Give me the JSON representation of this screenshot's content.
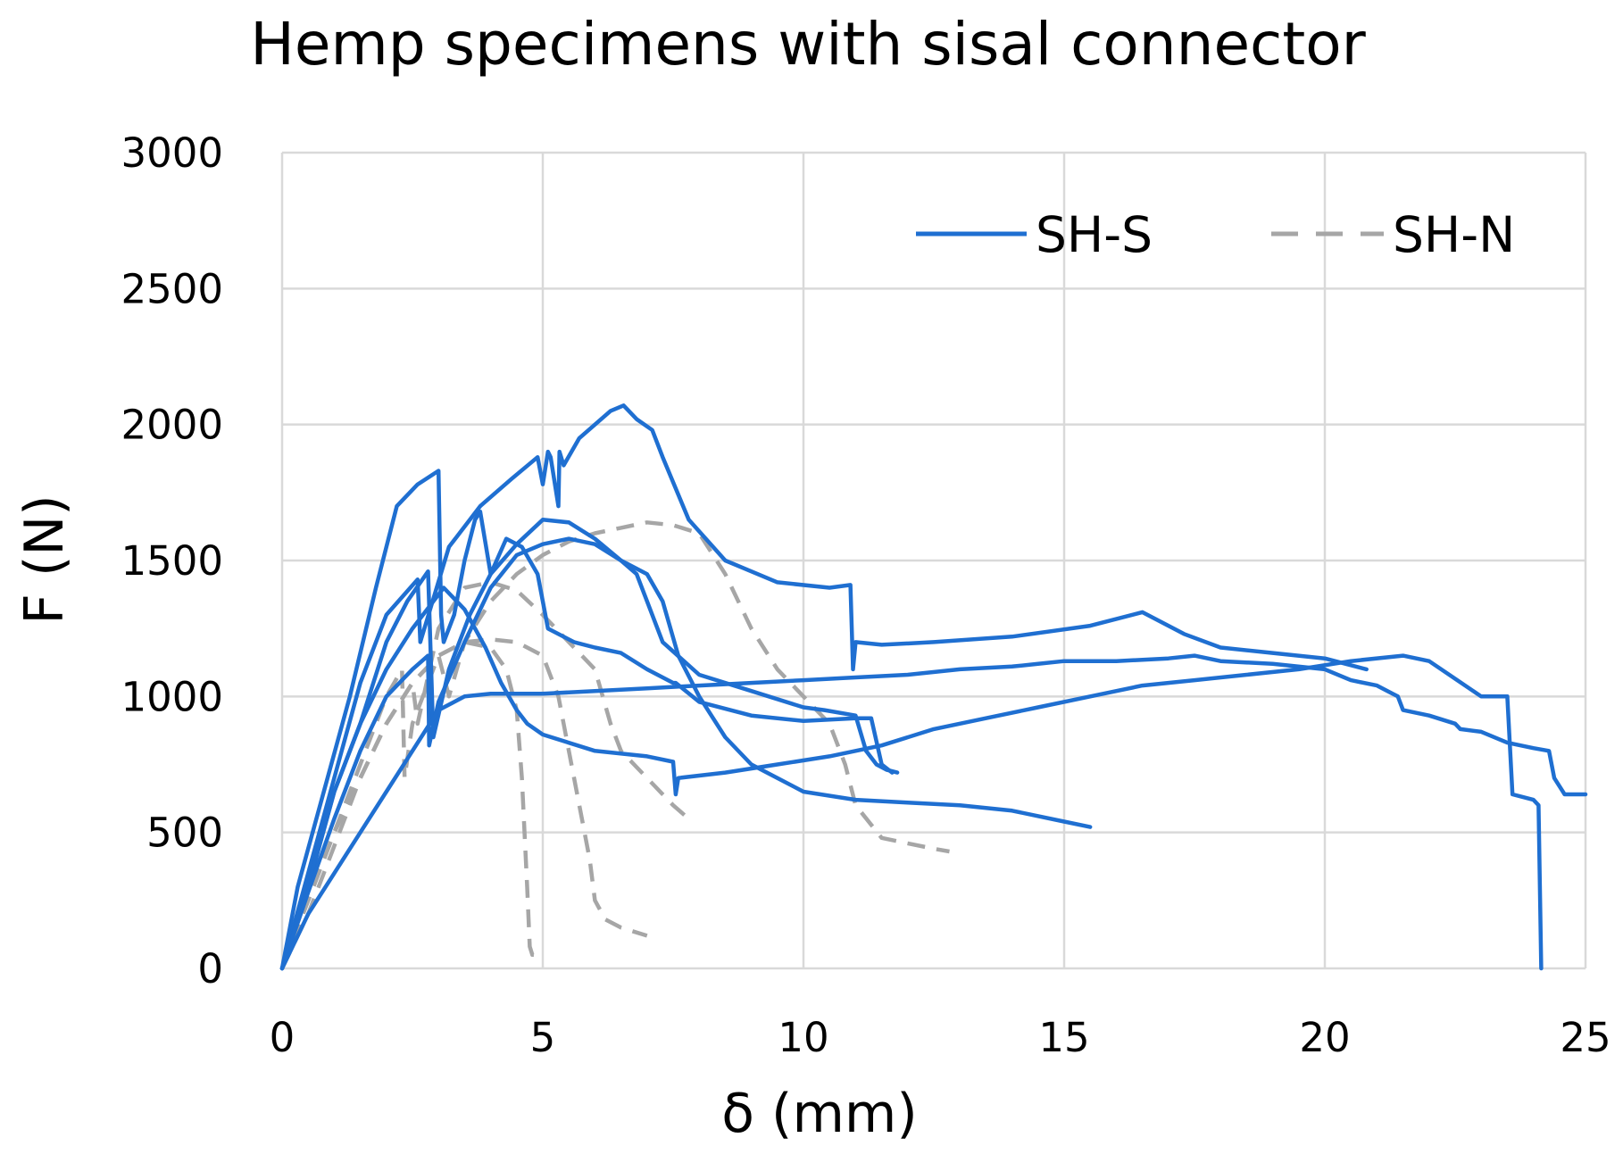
{
  "chart_data": {
    "type": "line",
    "title": "Hemp specimens with sisal connector",
    "xlabel": "δ (mm)",
    "ylabel": "F (N)",
    "xlim": [
      0,
      25
    ],
    "ylim": [
      0,
      3000
    ],
    "x_ticks": [
      "0",
      "5",
      "10",
      "15",
      "20",
      "25"
    ],
    "y_ticks": [
      "0",
      "500",
      "1000",
      "1500",
      "2000",
      "2500",
      "3000"
    ],
    "grid": true,
    "legend_position": "top-right",
    "legend": [
      {
        "label": "SH-S",
        "color": "#1f6fd1",
        "style": "solid"
      },
      {
        "label": "SH-N",
        "color": "#a6a6a6",
        "style": "dashed"
      }
    ],
    "series": [
      {
        "group": "SH-S",
        "color": "#1f6fd1",
        "style": "solid",
        "x": [
          0,
          0.3,
          0.8,
          1.3,
          1.8,
          2.2,
          2.6,
          3.0,
          3.05,
          3.1,
          3.3,
          3.5,
          3.7,
          3.8,
          4.0,
          4.3,
          4.6,
          4.9,
          5.1,
          5.6,
          6.0,
          6.5,
          7.0,
          7.5,
          7.55,
          8.0,
          9.0,
          10.0,
          11.0,
          11.3,
          11.5,
          11.7
        ],
        "y": [
          0,
          300,
          650,
          1000,
          1400,
          1700,
          1780,
          1830,
          1300,
          1200,
          1300,
          1500,
          1650,
          1680,
          1450,
          1580,
          1550,
          1450,
          1250,
          1200,
          1180,
          1160,
          1100,
          1050,
          1050,
          980,
          930,
          910,
          920,
          920,
          750,
          720
        ]
      },
      {
        "group": "SH-S",
        "color": "#1f6fd1",
        "style": "solid",
        "x": [
          0,
          0.5,
          1.0,
          1.5,
          2.0,
          2.6,
          2.65,
          3.2,
          3.8,
          4.4,
          4.9,
          5.0,
          5.1,
          5.15,
          5.3,
          5.32,
          5.4,
          5.7,
          6.0,
          6.3,
          6.55,
          6.8,
          7.1,
          7.3,
          7.8,
          8.5,
          9.5,
          10.5,
          10.9,
          10.95,
          11.0,
          11.5,
          12.5,
          14,
          15.5,
          16.5,
          17.3,
          18,
          19,
          20,
          20.8
        ],
        "y": [
          0,
          350,
          700,
          1050,
          1300,
          1430,
          1200,
          1550,
          1700,
          1800,
          1880,
          1780,
          1900,
          1880,
          1700,
          1900,
          1850,
          1950,
          2000,
          2050,
          2070,
          2020,
          1980,
          1880,
          1650,
          1500,
          1420,
          1400,
          1410,
          1100,
          1200,
          1190,
          1200,
          1220,
          1260,
          1310,
          1230,
          1180,
          1160,
          1140,
          1100
        ]
      },
      {
        "group": "SH-S",
        "color": "#1f6fd1",
        "style": "solid",
        "x": [
          0,
          0.5,
          1.0,
          1.5,
          2.0,
          2.4,
          2.8,
          2.9,
          3.2,
          3.6,
          4.0,
          4.5,
          5.0,
          5.5,
          6.0,
          6.5,
          6.8,
          7.0,
          7.3,
          8.0,
          9.0,
          10.0,
          10.4,
          11.0,
          11.2,
          11.4,
          11.6,
          11.8
        ],
        "y": [
          0,
          300,
          650,
          900,
          1200,
          1350,
          1460,
          850,
          1100,
          1300,
          1450,
          1560,
          1650,
          1640,
          1580,
          1500,
          1450,
          1350,
          1200,
          1080,
          1020,
          960,
          950,
          930,
          800,
          750,
          730,
          720
        ]
      },
      {
        "group": "SH-S",
        "color": "#1f6fd1",
        "style": "solid",
        "x": [
          0,
          0.5,
          1.0,
          1.5,
          2.0,
          2.5,
          2.9,
          3.1,
          3.5,
          3.9,
          4.2,
          4.5,
          4.7,
          5.0,
          6.0,
          7.0,
          7.5,
          7.55,
          7.6,
          8.5,
          9.5,
          10.5,
          11.5,
          12.5,
          13.5,
          14.5,
          15.5,
          16.5,
          17.5,
          18.5,
          19.5,
          20.5,
          21.5,
          22.0,
          23.0,
          23.5,
          23.6,
          24.0,
          24.1,
          24.15
        ],
        "y": [
          0,
          300,
          650,
          900,
          1100,
          1250,
          1350,
          1400,
          1320,
          1180,
          1050,
          950,
          900,
          860,
          800,
          780,
          760,
          640,
          700,
          720,
          750,
          780,
          820,
          880,
          920,
          960,
          1000,
          1040,
          1060,
          1080,
          1100,
          1130,
          1150,
          1130,
          1000,
          1000,
          640,
          620,
          600,
          0
        ]
      },
      {
        "group": "SH-S",
        "color": "#1f6fd1",
        "style": "solid",
        "x": [
          0,
          0.5,
          1.0,
          1.5,
          2.0,
          2.5,
          2.8,
          2.82,
          3.0,
          3.5,
          4.0,
          4.5,
          5.0,
          5.5,
          6.0,
          6.5,
          7.0,
          7.3,
          7.6,
          8.0,
          8.5,
          9.0,
          9.5,
          10.0,
          11.0,
          12.0,
          13.0,
          14.0,
          15.0,
          15.5
        ],
        "y": [
          0,
          280,
          550,
          800,
          1000,
          1100,
          1150,
          820,
          980,
          1200,
          1400,
          1520,
          1560,
          1580,
          1560,
          1500,
          1450,
          1350,
          1150,
          1000,
          850,
          750,
          700,
          650,
          620,
          610,
          600,
          580,
          540,
          520
        ]
      },
      {
        "group": "SH-S",
        "color": "#1f6fd1",
        "style": "solid",
        "x": [
          0,
          0.5,
          1.0,
          1.5,
          2.0,
          2.5,
          3.0,
          3.5,
          4.0,
          5.0,
          6.0,
          7.0,
          8.0,
          9.0,
          10.0,
          11.0,
          12.0,
          13.0,
          14.0,
          14.5,
          15.0,
          16.0,
          17.0,
          17.5,
          18.0,
          19.0,
          20.0,
          20.5,
          21.0,
          21.3,
          21.4,
          21.5,
          22.0,
          22.5,
          22.6,
          23.0,
          23.5,
          24.0,
          24.3,
          24.4,
          24.6,
          25.0
        ],
        "y": [
          0,
          200,
          350,
          500,
          650,
          800,
          950,
          1000,
          1010,
          1010,
          1020,
          1030,
          1040,
          1050,
          1060,
          1070,
          1080,
          1100,
          1110,
          1120,
          1130,
          1130,
          1140,
          1150,
          1130,
          1120,
          1100,
          1060,
          1040,
          1010,
          1000,
          950,
          930,
          900,
          880,
          870,
          830,
          810,
          800,
          700,
          640,
          640
        ]
      },
      {
        "group": "SH-N",
        "color": "#a6a6a6",
        "style": "dashed",
        "x": [
          0,
          0.5,
          1.0,
          1.5,
          2.0,
          2.3,
          2.35,
          2.5,
          3.0,
          3.5,
          4.0,
          4.3,
          4.5,
          4.6,
          4.7,
          4.75,
          4.8,
          4.9
        ],
        "y": [
          0,
          250,
          500,
          750,
          1000,
          1100,
          700,
          900,
          1150,
          1200,
          1180,
          1100,
          950,
          700,
          300,
          80,
          50,
          50
        ]
      },
      {
        "group": "SH-N",
        "color": "#a6a6a6",
        "style": "dashed",
        "x": [
          0,
          0.5,
          1.0,
          1.5,
          2.0,
          2.5,
          3.0,
          3.5,
          4.0,
          4.5,
          5.0,
          5.3,
          5.5,
          5.7,
          5.9,
          6.0,
          6.2,
          6.5,
          7.0
        ],
        "y": [
          0,
          250,
          500,
          700,
          900,
          1050,
          1150,
          1200,
          1210,
          1200,
          1150,
          1000,
          800,
          600,
          400,
          250,
          180,
          150,
          120
        ]
      },
      {
        "group": "SH-N",
        "color": "#a6a6a6",
        "style": "dashed",
        "x": [
          0,
          0.5,
          1.0,
          1.5,
          2.0,
          2.5,
          2.6,
          3.0,
          3.5,
          4.0,
          4.5,
          5.0,
          5.5,
          6.0,
          6.3,
          6.5,
          7.0,
          7.5,
          7.8
        ],
        "y": [
          0,
          250,
          500,
          700,
          900,
          1050,
          900,
          1250,
          1400,
          1420,
          1390,
          1300,
          1200,
          1100,
          900,
          800,
          700,
          600,
          550
        ]
      },
      {
        "group": "SH-N",
        "color": "#a6a6a6",
        "style": "dashed",
        "x": [
          0,
          0.5,
          1.0,
          1.5,
          2.0,
          2.5,
          3.0,
          3.2,
          3.5,
          4.0,
          4.5,
          5.0,
          5.5,
          6.0,
          6.5,
          7.0,
          7.5,
          8.0,
          8.5,
          9.0,
          9.5,
          10.0,
          10.5,
          10.8,
          11.0,
          11.5,
          12.0,
          12.5,
          12.8
        ],
        "y": [
          0,
          200,
          450,
          700,
          900,
          1050,
          1150,
          1000,
          1200,
          1350,
          1450,
          1520,
          1570,
          1600,
          1620,
          1640,
          1630,
          1600,
          1450,
          1250,
          1100,
          1000,
          900,
          750,
          600,
          480,
          460,
          440,
          430
        ]
      }
    ]
  }
}
